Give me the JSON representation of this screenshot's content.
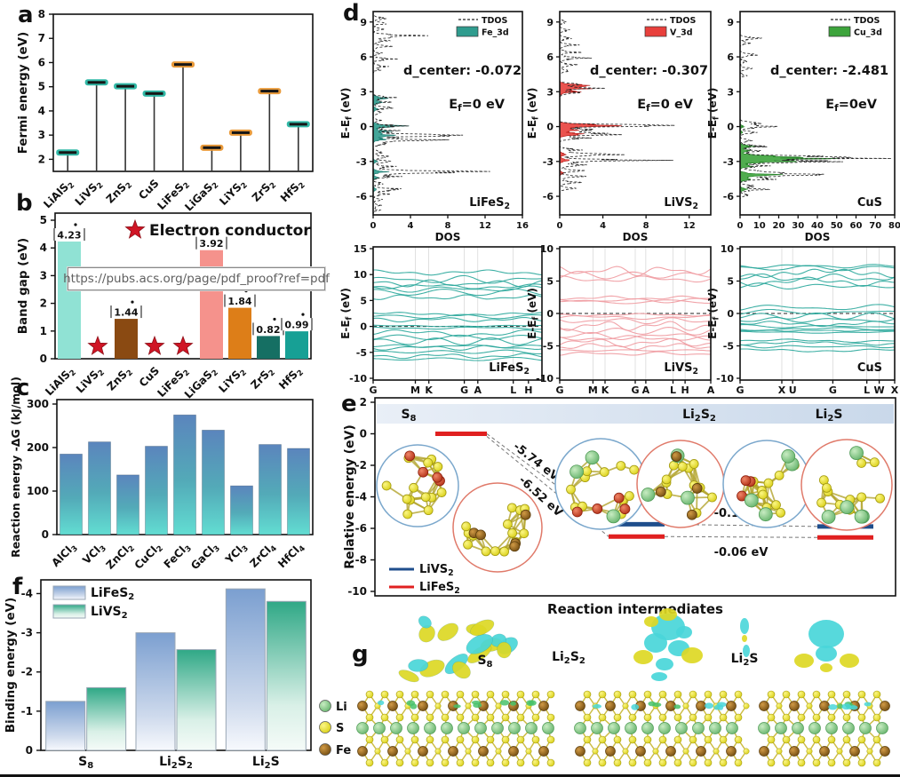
{
  "panel_letters": {
    "a": "a",
    "b": "b",
    "c": "c",
    "d": "d",
    "e": "e",
    "f": "f",
    "g": "g"
  },
  "watermark": {
    "url": "https://pubs.acs.org/page/pdf_proof?ref=pdf"
  },
  "colors": {
    "teal_marker": "#27b5a2",
    "orange_marker": "#e8952f",
    "marker_core": "#161616",
    "star_red": "#d01525",
    "band_teal": "#2aa79b",
    "band_pink": "#f09aa0",
    "level_blue": "#1f4e8c",
    "level_red": "#e02020",
    "c_grad_top": "#5b85bd",
    "c_grad_mid": "#53aab8",
    "c_grad_bot": "#62ddd2",
    "f_blue_top": "#7b9fd0",
    "f_green_top": "#2fa886",
    "dos1": "#2f9c8e",
    "dos2": "#e8403c",
    "dos3": "#3da43c",
    "atom_S": "#ece32b",
    "atom_Li": "#8fd08a",
    "atom_Fe": "#a06b1d",
    "atom_V": "#d4452c",
    "iso_cyan": "#49d6d9",
    "iso_yellow": "#ddd824"
  },
  "chart_data": [
    {
      "id": "a",
      "type": "stem-scatter",
      "ylabel": "Fermi energy (eV)",
      "ylim": [
        1.5,
        8
      ],
      "yticks": [
        2,
        3,
        4,
        5,
        6,
        7,
        8
      ],
      "categories": [
        "LiAlS_{2}",
        "LiVS_{2}",
        "ZnS_{2}",
        "CuS",
        "LiFeS_{2}",
        "LiGaS_{2}",
        "LiYS_{2}",
        "ZrS_{2}",
        "HfS_{2}"
      ],
      "values": [
        2.28,
        5.18,
        5.02,
        4.72,
        5.92,
        2.48,
        3.1,
        4.82,
        3.45
      ],
      "marker_colors": [
        "teal",
        "teal",
        "teal",
        "teal",
        "orange",
        "orange",
        "orange",
        "orange",
        "teal"
      ]
    },
    {
      "id": "b",
      "type": "bar",
      "ylabel": "Band gap (eV)",
      "ylim": [
        0,
        5
      ],
      "yticks": [
        0,
        1,
        2,
        3,
        4,
        5
      ],
      "legend_label": "Electron conductor",
      "categories": [
        "LiAlS_{2}",
        "LiVS_{2}",
        "ZnS_{2}",
        "CuS",
        "LiFeS_{2}",
        "LiGaS_{2}",
        "LiYS_{2}",
        "ZrS_{2}",
        "HfS_{2}"
      ],
      "values": [
        4.23,
        0,
        1.44,
        0,
        0,
        3.92,
        1.84,
        0.82,
        0.99
      ],
      "value_labels": [
        "4.23",
        "",
        "1.44",
        "",
        "",
        "3.92",
        "1.84",
        "0.82",
        "0.99"
      ],
      "is_conductor": [
        false,
        true,
        false,
        true,
        true,
        false,
        false,
        false,
        false
      ],
      "bar_colors": [
        "#90e2d4",
        "",
        "#8a4a12",
        "",
        "",
        "#f5928c",
        "#dd7e18",
        "#156f63",
        "#17a095"
      ]
    },
    {
      "id": "c",
      "type": "gradient-bar",
      "ylabel": "Reaction energy -ΔG (kJ/mol)",
      "ylim": [
        0,
        310
      ],
      "yticks": [
        0,
        100,
        200,
        300
      ],
      "categories": [
        "AlCl_{3}",
        "VCl_{3}",
        "ZnCl_{2}",
        "CuCl_{2}",
        "FeCl_{3}",
        "GaCl_{3}",
        "YCl_{3}",
        "ZrCl_{4}",
        "HfCl_{4}"
      ],
      "values": [
        185,
        213,
        137,
        203,
        275,
        240,
        112,
        207,
        198
      ]
    },
    {
      "id": "dos1",
      "type": "dos",
      "material": "LiFeS_{2}",
      "tdos_label": "TDOS",
      "orbital_label": "Fe_3d",
      "d_center": "d_center:  -0.072",
      "ef_label": "E_{f}=0 eV",
      "xlabel": "DOS",
      "ylabel": "E-E_{f} (eV)",
      "xlim": [
        0,
        16
      ],
      "xticks": [
        0,
        4,
        8,
        12,
        16
      ],
      "ylim": [
        -7.6,
        9.9
      ],
      "yticks": [
        -6,
        -3,
        0,
        3,
        6,
        9
      ],
      "tdos_peaks": [
        [
          9.3,
          1.5
        ],
        [
          8.9,
          2
        ],
        [
          8.4,
          1.2
        ],
        [
          7.8,
          6
        ],
        [
          7.4,
          2
        ],
        [
          6.9,
          1.5
        ],
        [
          6.3,
          1
        ],
        [
          5.8,
          2.2
        ],
        [
          5.2,
          1.4
        ],
        [
          4.9,
          0.8
        ],
        [
          2.5,
          2.2
        ],
        [
          2.1,
          1.5
        ],
        [
          1.6,
          2
        ],
        [
          1.2,
          1.2
        ],
        [
          0.5,
          1
        ],
        [
          0.05,
          3.2
        ],
        [
          -0.35,
          2.5
        ],
        [
          -0.75,
          10.2
        ],
        [
          -1.15,
          6
        ],
        [
          -1.5,
          1.5
        ],
        [
          -2.2,
          1.2
        ],
        [
          -2.6,
          2
        ],
        [
          -3.0,
          1.8
        ],
        [
          -3.45,
          2.2
        ],
        [
          -3.9,
          13
        ],
        [
          -4.3,
          2.5
        ],
        [
          -4.9,
          1.2
        ],
        [
          -5.4,
          4.3
        ],
        [
          -5.8,
          1.5
        ],
        [
          -6.3,
          1
        ],
        [
          -6.8,
          0.8
        ],
        [
          -7.2,
          0.6
        ]
      ],
      "pdos_peaks": [
        [
          2.45,
          1.6
        ],
        [
          2.1,
          1.2
        ],
        [
          1.5,
          0.8
        ],
        [
          0.05,
          3.3
        ],
        [
          -0.4,
          1.8
        ],
        [
          -0.75,
          2.8
        ],
        [
          -1.1,
          1.5
        ],
        [
          -3.0,
          0.5
        ],
        [
          -3.9,
          1.3
        ],
        [
          -4.4,
          0.6
        ],
        [
          -5.4,
          0.5
        ]
      ]
    },
    {
      "id": "dos2",
      "type": "dos",
      "material": "LiVS_{2}",
      "tdos_label": "TDOS",
      "orbital_label": "V_3d",
      "d_center": "d_center:  -0.307",
      "ef_label": "E_{f}=0 eV",
      "xlabel": "DOS",
      "ylabel": "E-E_{f} (eV)",
      "xlim": [
        0,
        14
      ],
      "xticks": [
        0,
        4,
        8,
        12
      ],
      "ylim": [
        -7.6,
        9.9
      ],
      "yticks": [
        -6,
        -3,
        0,
        3,
        6,
        9
      ],
      "tdos_peaks": [
        [
          9,
          0.8
        ],
        [
          8.3,
          1
        ],
        [
          7.6,
          1.2
        ],
        [
          7.0,
          1.5
        ],
        [
          6.4,
          1.8
        ],
        [
          5.9,
          2.2
        ],
        [
          5.3,
          1.6
        ],
        [
          4.8,
          1
        ],
        [
          3.6,
          2.5
        ],
        [
          3.3,
          3.2
        ],
        [
          2.9,
          2
        ],
        [
          0.1,
          11.4
        ],
        [
          -0.3,
          4
        ],
        [
          -0.65,
          6.6
        ],
        [
          -1.0,
          2.5
        ],
        [
          -2.0,
          2
        ],
        [
          -2.4,
          5.2
        ],
        [
          -2.9,
          8.3
        ],
        [
          -3.3,
          2.5
        ],
        [
          -3.8,
          2
        ],
        [
          -4.3,
          2.2
        ],
        [
          -4.8,
          1.8
        ],
        [
          -5.3,
          1.5
        ]
      ],
      "pdos_peaks": [
        [
          3.55,
          2.8
        ],
        [
          3.3,
          3.0
        ],
        [
          3.0,
          1.8
        ],
        [
          0.1,
          6.3
        ],
        [
          -0.3,
          2
        ],
        [
          -0.65,
          2.8
        ],
        [
          -2.4,
          0.8
        ],
        [
          -2.9,
          1
        ],
        [
          -4,
          0.5
        ]
      ]
    },
    {
      "id": "dos3",
      "type": "dos",
      "material": "CuS",
      "tdos_label": "TDOS",
      "orbital_label": "Cu_3d",
      "d_center": "d_center: -2.481",
      "ef_label": "E_{f}=0eV",
      "xlabel": "DOS",
      "ylabel": "E-E_{f} (eV)",
      "xlim": [
        0,
        80
      ],
      "xticks": [
        0,
        10,
        20,
        30,
        40,
        50,
        60,
        70,
        80
      ],
      "ylim": [
        -7.6,
        9.9
      ],
      "yticks": [
        -6,
        -3,
        0,
        3,
        6,
        9
      ],
      "tdos_peaks": [
        [
          7.6,
          9
        ],
        [
          7.2,
          5
        ],
        [
          6.2,
          12
        ],
        [
          5.6,
          4
        ],
        [
          5.0,
          6
        ],
        [
          4.4,
          3
        ],
        [
          0.3,
          10
        ],
        [
          0,
          22
        ],
        [
          -0.5,
          8
        ],
        [
          -1.2,
          6
        ],
        [
          -1.7,
          14
        ],
        [
          -2.1,
          10
        ],
        [
          -2.55,
          30
        ],
        [
          -2.75,
          70
        ],
        [
          -3.0,
          45
        ],
        [
          -3.4,
          15
        ],
        [
          -3.9,
          20
        ],
        [
          -4.15,
          44
        ],
        [
          -4.5,
          18
        ],
        [
          -5.1,
          8
        ],
        [
          -5.4,
          13
        ],
        [
          -5.9,
          5
        ]
      ],
      "pdos_peaks": [
        [
          -1.7,
          7
        ],
        [
          -2.1,
          6
        ],
        [
          -2.55,
          20
        ],
        [
          -2.75,
          38
        ],
        [
          -3.0,
          25
        ],
        [
          -3.4,
          8
        ],
        [
          -4.15,
          20
        ],
        [
          -4.5,
          9
        ],
        [
          -5.4,
          4
        ],
        [
          0,
          2
        ],
        [
          -0.5,
          1.5
        ]
      ]
    },
    {
      "id": "band1",
      "type": "bands",
      "material": "LiFeS_{2}",
      "ylabel": "E-E_{f} (eV)",
      "ylim": [
        -10,
        15
      ],
      "yticks": [
        -10,
        -5,
        0,
        5,
        10,
        15
      ],
      "kpoints": [
        "G",
        "M",
        "K",
        "G",
        "A",
        "L",
        "H"
      ],
      "kpos": [
        0,
        0.25,
        0.33,
        0.54,
        0.62,
        0.83,
        0.92
      ],
      "bands": [
        [
          10.4,
          0.5
        ],
        [
          9.0,
          0.8
        ],
        [
          8.3,
          0.7
        ],
        [
          7.7,
          0.5
        ],
        [
          7.2,
          0.6
        ],
        [
          6.6,
          0.7
        ],
        [
          5.6,
          0.5
        ],
        [
          2.4,
          0.35
        ],
        [
          1.9,
          0.4
        ],
        [
          1.3,
          0.45
        ],
        [
          0.1,
          0.15
        ],
        [
          -0.3,
          0.25
        ],
        [
          -1.3,
          0.7
        ],
        [
          -2.1,
          0.8
        ],
        [
          -2.9,
          0.7
        ],
        [
          -3.8,
          0.3
        ],
        [
          -4.1,
          0.5
        ],
        [
          -4.9,
          0.6
        ],
        [
          -5.7,
          0.5
        ],
        [
          -6.3,
          0.4
        ]
      ]
    },
    {
      "id": "band2",
      "type": "bands",
      "material": "LiVS_{2}",
      "ylabel": "E-E_{f} (eV)",
      "ylim": [
        -10,
        10
      ],
      "yticks": [
        -10,
        -5,
        0,
        5,
        10
      ],
      "kpoints": [
        "G",
        "M",
        "K",
        "G",
        "A",
        "L",
        "H",
        "A"
      ],
      "kpos": [
        0,
        0.22,
        0.3,
        0.5,
        0.57,
        0.75,
        0.83,
        1
      ],
      "bands": [
        [
          6.6,
          0.8
        ],
        [
          5.9,
          0.7
        ],
        [
          5.3,
          0.5
        ],
        [
          2.4,
          0.3
        ],
        [
          2.0,
          0.35
        ],
        [
          1.8,
          0.3
        ],
        [
          -0.2,
          0.2
        ],
        [
          -0.6,
          0.3
        ],
        [
          -1.1,
          0.5
        ],
        [
          -1.9,
          0.8
        ],
        [
          -2.7,
          0.8
        ],
        [
          -3.5,
          0.6
        ],
        [
          -3.8,
          0.4
        ],
        [
          -4.5,
          0.7
        ],
        [
          -5.1,
          0.5
        ],
        [
          -5.7,
          0.5
        ],
        [
          -6.2,
          0.3
        ]
      ]
    },
    {
      "id": "band3",
      "type": "bands",
      "material": "CuS",
      "ylabel": "E-E_{f} (eV)",
      "ylim": [
        -10,
        10
      ],
      "yticks": [
        -10,
        -5,
        0,
        5,
        10
      ],
      "kpoints": [
        "G",
        "X",
        "U",
        "G",
        "L",
        "W",
        "X"
      ],
      "kpos": [
        0,
        0.27,
        0.34,
        0.6,
        0.82,
        0.9,
        1
      ],
      "bands": [
        [
          7.3,
          0.3
        ],
        [
          7.0,
          0.4
        ],
        [
          6.2,
          0.7
        ],
        [
          5.5,
          0.6
        ],
        [
          4.9,
          0.7
        ],
        [
          4.2,
          0.5
        ],
        [
          0.9,
          0.5
        ],
        [
          0.2,
          0.45
        ],
        [
          -0.4,
          0.5
        ],
        [
          -1.0,
          0.4
        ],
        [
          -1.6,
          0.4
        ],
        [
          -2.0,
          0.3
        ],
        [
          -2.4,
          0.25
        ],
        [
          -2.65,
          0.1
        ],
        [
          -2.9,
          0.15
        ],
        [
          -4.2,
          0.25
        ],
        [
          -4.6,
          0.3
        ],
        [
          -5.1,
          0.3
        ],
        [
          -5.7,
          0.25
        ]
      ]
    },
    {
      "id": "e",
      "type": "energy-levels",
      "ylabel": "Relative energy (eV)",
      "xlabel": "Reaction intermediates",
      "ylim": [
        -10,
        2
      ],
      "yticks": [
        2,
        0,
        -2,
        -4,
        -6,
        -8,
        -10
      ],
      "stage_labels": [
        "S_{8}",
        "Li_{2}S_{2}",
        "Li_{2}S"
      ],
      "series": [
        {
          "name": "LiVS_{2}",
          "color_key": "level_blue",
          "levels": [
            null,
            -5.74,
            -5.88
          ]
        },
        {
          "name": "LiFeS_{2}",
          "color_key": "level_red",
          "levels": [
            0,
            -6.52,
            -6.58
          ]
        }
      ],
      "drop_labels": [
        "-5.74 eV",
        "-6.52 eV"
      ],
      "step_labels": [
        "-0.14 eV",
        "-0.06 eV"
      ],
      "insets": [
        {
          "border": "blue",
          "mix": {
            "S": 13,
            "V": 4,
            "Li": 0,
            "Fe": 0
          }
        },
        {
          "border": "red",
          "mix": {
            "S": 14,
            "V": 0,
            "Li": 0,
            "Fe": 5
          }
        },
        {
          "border": "blue",
          "mix": {
            "S": 11,
            "V": 4,
            "Li": 3,
            "Fe": 0
          }
        },
        {
          "border": "red",
          "mix": {
            "S": 11,
            "V": 0,
            "Li": 3,
            "Fe": 4
          }
        },
        {
          "border": "blue",
          "mix": {
            "S": 10,
            "V": 3,
            "Li": 4,
            "Fe": 0
          }
        },
        {
          "border": "red",
          "mix": {
            "S": 12,
            "V": 0,
            "Li": 5,
            "Fe": 0
          }
        }
      ]
    },
    {
      "id": "f",
      "type": "grouped-bar",
      "ylabel": "Binding energy (eV)",
      "ylim": [
        0,
        -4.35
      ],
      "yticks": [
        0,
        -1,
        -2,
        -3,
        -4
      ],
      "categories": [
        "S_{8}",
        "Li_{2}S_{2}",
        "Li_{2}S"
      ],
      "series": [
        {
          "name": "LiFeS_{2}",
          "values": [
            -1.25,
            -3.0,
            -4.12
          ],
          "grad": "f_blue"
        },
        {
          "name": "LiVS_{2}",
          "values": [
            -1.6,
            -2.57,
            -3.8
          ],
          "grad": "f_green"
        }
      ]
    }
  ],
  "panel_g": {
    "labels": [
      "S_{8}",
      "Li_{2}S_{2}",
      "Li_{2}S"
    ],
    "legend": [
      {
        "label": "Li",
        "key": "atom_Li"
      },
      {
        "label": "S",
        "key": "atom_S"
      },
      {
        "label": "Fe",
        "key": "atom_Fe"
      }
    ]
  }
}
